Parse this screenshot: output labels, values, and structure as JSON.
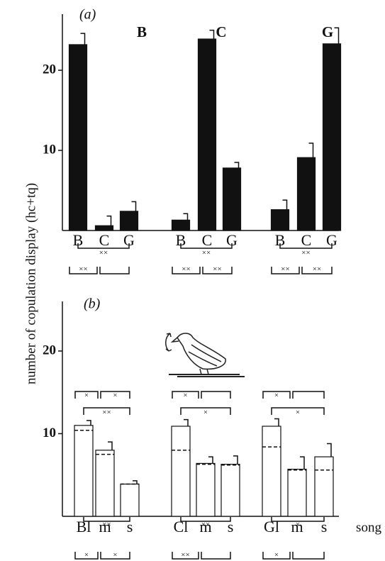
{
  "chart_data": [
    {
      "type": "bar",
      "panel": "(a)",
      "ylabel": "number of copulation display (hc+tq)",
      "ylim": [
        0,
        27
      ],
      "yticks": [
        10,
        20
      ],
      "bar_color": "#111",
      "groups": [
        {
          "name": "B",
          "categories": [
            "B",
            "C",
            "G"
          ],
          "values": [
            23.2,
            0.6,
            2.4
          ],
          "errors": [
            1.4,
            1.2,
            1.2
          ],
          "significance_below": {
            "across": "××",
            "first": "××"
          }
        },
        {
          "name": "C",
          "categories": [
            "B",
            "C",
            "G"
          ],
          "values": [
            1.3,
            23.9,
            7.8
          ],
          "errors": [
            0.8,
            1.1,
            0.7
          ],
          "significance_below": {
            "across": "××",
            "first": "××",
            "second": "××"
          }
        },
        {
          "name": "G",
          "categories": [
            "B",
            "C",
            "G"
          ],
          "values": [
            2.6,
            9.1,
            23.3
          ],
          "errors": [
            1.2,
            1.8,
            2.0
          ],
          "significance_below": {
            "across": "××",
            "first": "××",
            "second": "××"
          }
        }
      ]
    },
    {
      "type": "bar",
      "panel": "(b)",
      "xlabel": "song",
      "ylim": [
        0,
        26
      ],
      "yticks": [
        10,
        20
      ],
      "bar_color": "#ffffff",
      "groups": [
        {
          "categories": [
            "Bl",
            "m",
            "s"
          ],
          "values": [
            11.0,
            8.0,
            3.9
          ],
          "medians": [
            10.4,
            7.5,
            3.9
          ],
          "errors": [
            0.6,
            1.0,
            0.4
          ],
          "significance_above": {
            "first": "×",
            "second": "×",
            "across": "××"
          },
          "significance_below": {
            "across": "××",
            "first": "×",
            "second": "×"
          }
        },
        {
          "categories": [
            "Cl",
            "m",
            "s"
          ],
          "values": [
            10.9,
            6.4,
            6.3
          ],
          "medians": [
            8.0,
            6.3,
            6.2
          ],
          "errors": [
            0.8,
            0.8,
            1.0
          ],
          "significance_above": {
            "first": "×",
            "across": "×"
          },
          "significance_below": {
            "across": "××",
            "first": "××"
          }
        },
        {
          "categories": [
            "Gl",
            "m",
            "s"
          ],
          "values": [
            10.9,
            5.7,
            7.2
          ],
          "medians": [
            8.4,
            5.6,
            5.6
          ],
          "errors": [
            0.9,
            1.5,
            1.6
          ],
          "significance_above": {
            "first": "×",
            "across": "×"
          },
          "significance_below": {
            "across": "×",
            "first": "×"
          }
        }
      ]
    }
  ]
}
